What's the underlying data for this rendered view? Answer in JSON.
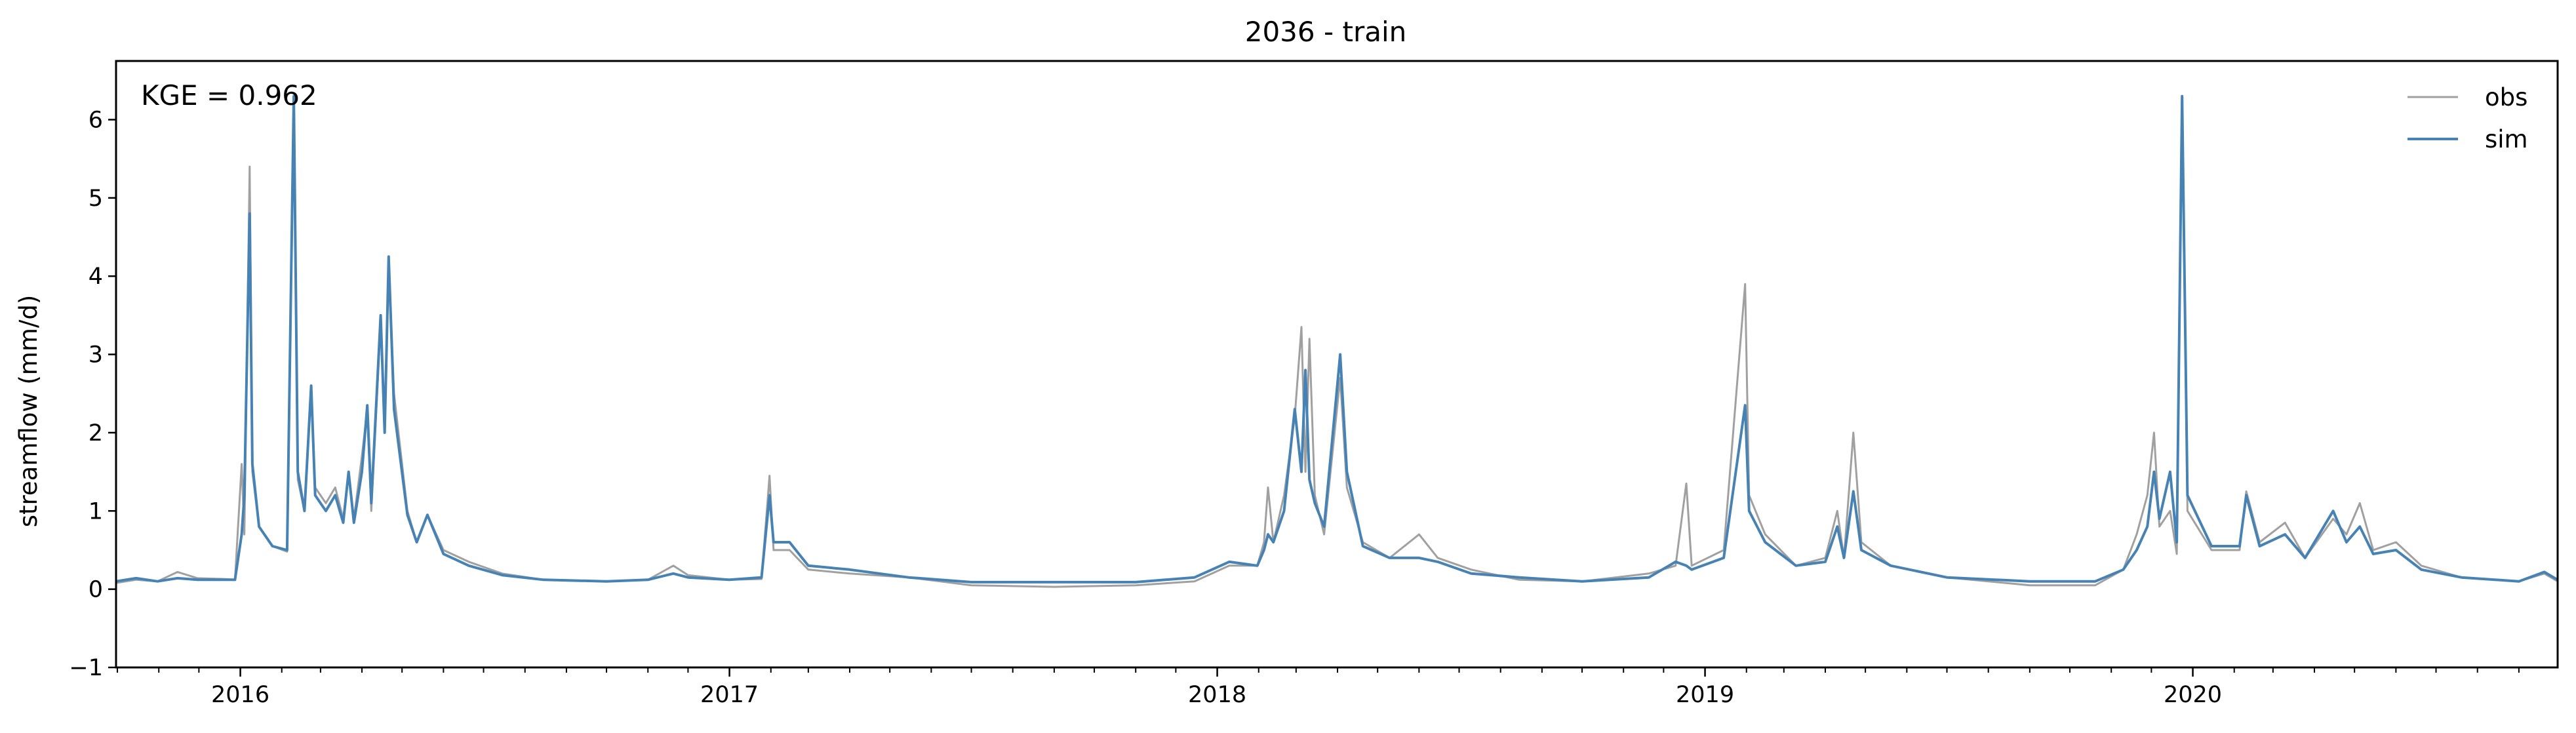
{
  "chart_data": {
    "type": "line",
    "title": "2036 - train",
    "xlabel": "",
    "ylabel": "streamflow (mm/d)",
    "annotation": "KGE = 0.962",
    "xlim": [
      "2015-09-30",
      "2020-09-30"
    ],
    "ylim": [
      -1,
      6.75
    ],
    "yticks": [
      -1,
      0,
      1,
      2,
      3,
      4,
      5,
      6
    ],
    "xticks": [
      {
        "date": "2016-01-01",
        "label": "2016"
      },
      {
        "date": "2017-01-01",
        "label": "2017"
      },
      {
        "date": "2018-01-01",
        "label": "2018"
      },
      {
        "date": "2019-01-01",
        "label": "2019"
      },
      {
        "date": "2020-01-01",
        "label": "2020"
      }
    ],
    "legend": {
      "position": "top-right"
    },
    "series": [
      {
        "name": "obs",
        "color": "#a0a0a0",
        "points": [
          [
            "2015-09-30",
            0.08
          ],
          [
            "2015-10-15",
            0.12
          ],
          [
            "2015-10-31",
            0.1
          ],
          [
            "2015-11-15",
            0.22
          ],
          [
            "2015-11-30",
            0.14
          ],
          [
            "2015-12-20",
            0.13
          ],
          [
            "2015-12-28",
            0.12
          ],
          [
            "2016-01-02",
            1.6
          ],
          [
            "2016-01-04",
            0.7
          ],
          [
            "2016-01-08",
            5.4
          ],
          [
            "2016-01-10",
            1.5
          ],
          [
            "2016-01-15",
            0.8
          ],
          [
            "2016-01-25",
            0.55
          ],
          [
            "2016-02-05",
            0.48
          ],
          [
            "2016-02-10",
            6.3
          ],
          [
            "2016-02-13",
            1.4
          ],
          [
            "2016-02-18",
            1.0
          ],
          [
            "2016-02-23",
            2.6
          ],
          [
            "2016-02-26",
            1.3
          ],
          [
            "2016-03-05",
            1.1
          ],
          [
            "2016-03-12",
            1.3
          ],
          [
            "2016-03-18",
            0.9
          ],
          [
            "2016-03-22",
            1.5
          ],
          [
            "2016-03-26",
            0.9
          ],
          [
            "2016-04-01",
            1.7
          ],
          [
            "2016-04-05",
            2.3
          ],
          [
            "2016-04-08",
            1.0
          ],
          [
            "2016-04-15",
            3.4
          ],
          [
            "2016-04-18",
            2.0
          ],
          [
            "2016-04-21",
            4.2
          ],
          [
            "2016-04-25",
            2.5
          ],
          [
            "2016-05-05",
            1.0
          ],
          [
            "2016-05-12",
            0.6
          ],
          [
            "2016-05-20",
            0.95
          ],
          [
            "2016-06-01",
            0.5
          ],
          [
            "2016-06-20",
            0.35
          ],
          [
            "2016-07-15",
            0.2
          ],
          [
            "2016-08-15",
            0.12
          ],
          [
            "2016-10-01",
            0.1
          ],
          [
            "2016-11-01",
            0.12
          ],
          [
            "2016-11-20",
            0.3
          ],
          [
            "2016-12-01",
            0.18
          ],
          [
            "2017-01-01",
            0.12
          ],
          [
            "2017-01-25",
            0.13
          ],
          [
            "2017-01-31",
            1.45
          ],
          [
            "2017-02-03",
            0.5
          ],
          [
            "2017-02-15",
            0.5
          ],
          [
            "2017-03-01",
            0.25
          ],
          [
            "2017-04-01",
            0.2
          ],
          [
            "2017-05-15",
            0.15
          ],
          [
            "2017-07-01",
            0.05
          ],
          [
            "2017-09-01",
            0.03
          ],
          [
            "2017-11-01",
            0.05
          ],
          [
            "2017-12-15",
            0.1
          ],
          [
            "2018-01-10",
            0.3
          ],
          [
            "2018-01-31",
            0.3
          ],
          [
            "2018-02-05",
            0.6
          ],
          [
            "2018-02-08",
            1.3
          ],
          [
            "2018-02-12",
            0.6
          ],
          [
            "2018-02-20",
            1.2
          ],
          [
            "2018-02-28",
            2.2
          ],
          [
            "2018-03-05",
            3.35
          ],
          [
            "2018-03-08",
            1.5
          ],
          [
            "2018-03-11",
            3.2
          ],
          [
            "2018-03-15",
            1.2
          ],
          [
            "2018-03-22",
            0.7
          ],
          [
            "2018-04-03",
            2.7
          ],
          [
            "2018-04-08",
            1.3
          ],
          [
            "2018-04-20",
            0.6
          ],
          [
            "2018-05-10",
            0.4
          ],
          [
            "2018-06-01",
            0.7
          ],
          [
            "2018-06-15",
            0.4
          ],
          [
            "2018-07-10",
            0.25
          ],
          [
            "2018-08-15",
            0.12
          ],
          [
            "2018-10-01",
            0.1
          ],
          [
            "2018-11-20",
            0.2
          ],
          [
            "2018-12-10",
            0.3
          ],
          [
            "2018-12-18",
            1.35
          ],
          [
            "2018-12-22",
            0.3
          ],
          [
            "2019-01-15",
            0.5
          ],
          [
            "2019-01-31",
            3.9
          ],
          [
            "2019-02-03",
            1.2
          ],
          [
            "2019-02-15",
            0.7
          ],
          [
            "2019-03-10",
            0.3
          ],
          [
            "2019-04-01",
            0.4
          ],
          [
            "2019-04-10",
            1.0
          ],
          [
            "2019-04-15",
            0.4
          ],
          [
            "2019-04-22",
            2.0
          ],
          [
            "2019-04-28",
            0.6
          ],
          [
            "2019-05-20",
            0.3
          ],
          [
            "2019-07-01",
            0.15
          ],
          [
            "2019-09-01",
            0.05
          ],
          [
            "2019-10-20",
            0.05
          ],
          [
            "2019-11-10",
            0.25
          ],
          [
            "2019-11-20",
            0.7
          ],
          [
            "2019-11-28",
            1.2
          ],
          [
            "2019-12-03",
            2.0
          ],
          [
            "2019-12-07",
            0.8
          ],
          [
            "2019-12-15",
            1.0
          ],
          [
            "2019-12-20",
            0.45
          ],
          [
            "2019-12-24",
            6.3
          ],
          [
            "2019-12-28",
            1.0
          ],
          [
            "2020-01-15",
            0.5
          ],
          [
            "2020-02-05",
            0.5
          ],
          [
            "2020-02-10",
            1.25
          ],
          [
            "2020-02-20",
            0.6
          ],
          [
            "2020-03-10",
            0.85
          ],
          [
            "2020-03-25",
            0.4
          ],
          [
            "2020-04-15",
            0.9
          ],
          [
            "2020-04-25",
            0.7
          ],
          [
            "2020-05-05",
            1.1
          ],
          [
            "2020-05-15",
            0.5
          ],
          [
            "2020-06-01",
            0.6
          ],
          [
            "2020-06-20",
            0.3
          ],
          [
            "2020-07-20",
            0.15
          ],
          [
            "2020-09-01",
            0.1
          ],
          [
            "2020-09-20",
            0.2
          ],
          [
            "2020-09-30",
            0.1
          ]
        ]
      },
      {
        "name": "sim",
        "color": "#4682b4",
        "points": [
          [
            "2015-09-30",
            0.1
          ],
          [
            "2015-10-15",
            0.14
          ],
          [
            "2015-10-31",
            0.1
          ],
          [
            "2015-11-15",
            0.14
          ],
          [
            "2015-11-30",
            0.12
          ],
          [
            "2015-12-20",
            0.12
          ],
          [
            "2015-12-28",
            0.12
          ],
          [
            "2016-01-02",
            0.7
          ],
          [
            "2016-01-04",
            1.2
          ],
          [
            "2016-01-08",
            4.8
          ],
          [
            "2016-01-10",
            1.6
          ],
          [
            "2016-01-15",
            0.8
          ],
          [
            "2016-01-25",
            0.55
          ],
          [
            "2016-02-05",
            0.5
          ],
          [
            "2016-02-10",
            6.3
          ],
          [
            "2016-02-13",
            1.5
          ],
          [
            "2016-02-18",
            1.0
          ],
          [
            "2016-02-23",
            2.6
          ],
          [
            "2016-02-26",
            1.2
          ],
          [
            "2016-03-05",
            1.0
          ],
          [
            "2016-03-12",
            1.2
          ],
          [
            "2016-03-18",
            0.85
          ],
          [
            "2016-03-22",
            1.5
          ],
          [
            "2016-03-26",
            0.85
          ],
          [
            "2016-04-01",
            1.5
          ],
          [
            "2016-04-05",
            2.35
          ],
          [
            "2016-04-08",
            1.1
          ],
          [
            "2016-04-15",
            3.5
          ],
          [
            "2016-04-18",
            2.0
          ],
          [
            "2016-04-21",
            4.25
          ],
          [
            "2016-04-25",
            2.3
          ],
          [
            "2016-05-05",
            0.95
          ],
          [
            "2016-05-12",
            0.6
          ],
          [
            "2016-05-20",
            0.95
          ],
          [
            "2016-06-01",
            0.45
          ],
          [
            "2016-06-20",
            0.3
          ],
          [
            "2016-07-15",
            0.18
          ],
          [
            "2016-08-15",
            0.12
          ],
          [
            "2016-10-01",
            0.1
          ],
          [
            "2016-11-01",
            0.12
          ],
          [
            "2016-11-20",
            0.2
          ],
          [
            "2016-12-01",
            0.15
          ],
          [
            "2017-01-01",
            0.12
          ],
          [
            "2017-01-25",
            0.15
          ],
          [
            "2017-01-31",
            1.2
          ],
          [
            "2017-02-03",
            0.6
          ],
          [
            "2017-02-15",
            0.6
          ],
          [
            "2017-03-01",
            0.3
          ],
          [
            "2017-04-01",
            0.25
          ],
          [
            "2017-05-15",
            0.15
          ],
          [
            "2017-07-01",
            0.09
          ],
          [
            "2017-09-01",
            0.09
          ],
          [
            "2017-11-01",
            0.09
          ],
          [
            "2017-12-15",
            0.15
          ],
          [
            "2018-01-10",
            0.35
          ],
          [
            "2018-01-31",
            0.3
          ],
          [
            "2018-02-05",
            0.5
          ],
          [
            "2018-02-08",
            0.7
          ],
          [
            "2018-02-12",
            0.6
          ],
          [
            "2018-02-20",
            1.0
          ],
          [
            "2018-02-28",
            2.3
          ],
          [
            "2018-03-05",
            1.5
          ],
          [
            "2018-03-08",
            2.8
          ],
          [
            "2018-03-11",
            1.4
          ],
          [
            "2018-03-15",
            1.1
          ],
          [
            "2018-03-22",
            0.8
          ],
          [
            "2018-04-03",
            3.0
          ],
          [
            "2018-04-08",
            1.5
          ],
          [
            "2018-04-20",
            0.55
          ],
          [
            "2018-05-10",
            0.4
          ],
          [
            "2018-06-01",
            0.4
          ],
          [
            "2018-06-15",
            0.35
          ],
          [
            "2018-07-10",
            0.2
          ],
          [
            "2018-08-15",
            0.15
          ],
          [
            "2018-10-01",
            0.1
          ],
          [
            "2018-11-20",
            0.15
          ],
          [
            "2018-12-10",
            0.35
          ],
          [
            "2018-12-18",
            0.3
          ],
          [
            "2018-12-22",
            0.25
          ],
          [
            "2019-01-15",
            0.4
          ],
          [
            "2019-01-31",
            2.35
          ],
          [
            "2019-02-03",
            1.0
          ],
          [
            "2019-02-15",
            0.6
          ],
          [
            "2019-03-10",
            0.3
          ],
          [
            "2019-04-01",
            0.35
          ],
          [
            "2019-04-10",
            0.8
          ],
          [
            "2019-04-15",
            0.4
          ],
          [
            "2019-04-22",
            1.25
          ],
          [
            "2019-04-28",
            0.5
          ],
          [
            "2019-05-20",
            0.3
          ],
          [
            "2019-07-01",
            0.15
          ],
          [
            "2019-09-01",
            0.1
          ],
          [
            "2019-10-20",
            0.1
          ],
          [
            "2019-11-10",
            0.25
          ],
          [
            "2019-11-20",
            0.5
          ],
          [
            "2019-11-28",
            0.8
          ],
          [
            "2019-12-03",
            1.5
          ],
          [
            "2019-12-07",
            0.9
          ],
          [
            "2019-12-15",
            1.5
          ],
          [
            "2019-12-20",
            0.6
          ],
          [
            "2019-12-24",
            6.3
          ],
          [
            "2019-12-28",
            1.2
          ],
          [
            "2020-01-15",
            0.55
          ],
          [
            "2020-02-05",
            0.55
          ],
          [
            "2020-02-10",
            1.2
          ],
          [
            "2020-02-20",
            0.55
          ],
          [
            "2020-03-10",
            0.7
          ],
          [
            "2020-03-25",
            0.4
          ],
          [
            "2020-04-15",
            1.0
          ],
          [
            "2020-04-25",
            0.6
          ],
          [
            "2020-05-05",
            0.8
          ],
          [
            "2020-05-15",
            0.45
          ],
          [
            "2020-06-01",
            0.5
          ],
          [
            "2020-06-20",
            0.25
          ],
          [
            "2020-07-20",
            0.15
          ],
          [
            "2020-09-01",
            0.1
          ],
          [
            "2020-09-20",
            0.22
          ],
          [
            "2020-09-30",
            0.12
          ]
        ]
      }
    ]
  }
}
